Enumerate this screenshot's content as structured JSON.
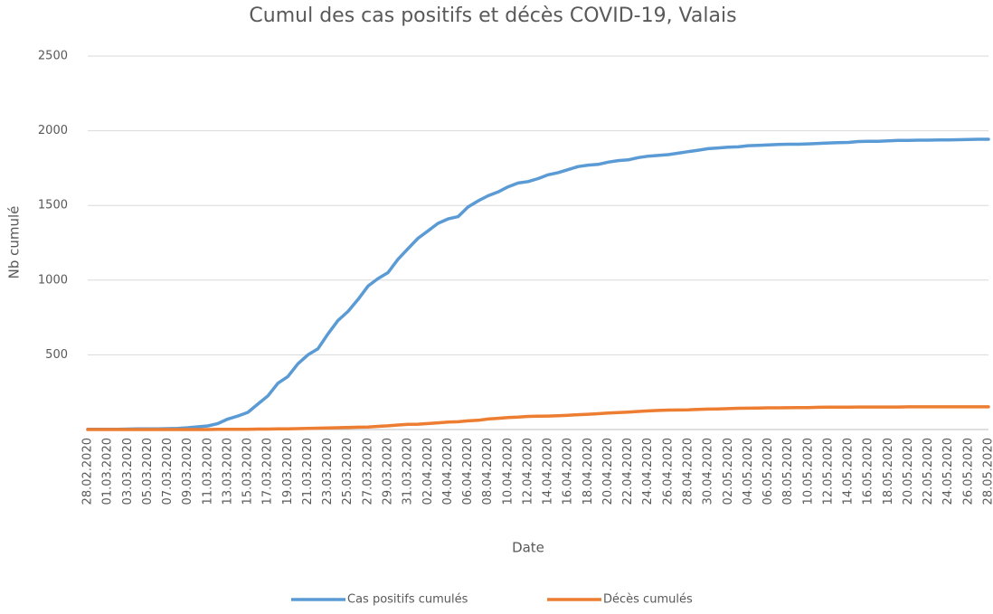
{
  "chart_data": {
    "type": "line",
    "title": "Cumul des cas positifs et décès COVID-19, Valais",
    "x_label": "Date",
    "y_label": "Nb cumulé",
    "categories": [
      "28.02.2020",
      null,
      "01.03.2020",
      null,
      "03.03.2020",
      null,
      "05.03.2020",
      null,
      "07.03.2020",
      null,
      "09.03.2020",
      null,
      "11.03.2020",
      null,
      "13.03.2020",
      null,
      "15.03.2020",
      null,
      "17.03.2020",
      null,
      "19.03.2020",
      null,
      "21.03.2020",
      null,
      "23.03.2020",
      null,
      "25.03.2020",
      null,
      "27.03.2020",
      null,
      "29.03.2020",
      null,
      "31.03.2020",
      null,
      "02.04.2020",
      null,
      "04.04.2020",
      null,
      "06.04.2020",
      null,
      "08.04.2020",
      null,
      "10.04.2020",
      null,
      "12.04.2020",
      null,
      "14.04.2020",
      null,
      "16.04.2020",
      null,
      "18.04.2020",
      null,
      "20.04.2020",
      null,
      "22.04.2020",
      null,
      "24.04.2020",
      null,
      "26.04.2020",
      null,
      "28.04.2020",
      null,
      "30.04.2020",
      null,
      "02.05.2020",
      null,
      "04.05.2020",
      null,
      "06.05.2020",
      null,
      "08.05.2020",
      null,
      "10.05.2020",
      null,
      "12.05.2020",
      null,
      "14.05.2020",
      null,
      "16.05.2020",
      null,
      "18.05.2020",
      null,
      "20.05.2020",
      null,
      "22.05.2020",
      null,
      "24.05.2020",
      null,
      "26.05.2020",
      null,
      "28.05.2020"
    ],
    "series": [
      {
        "name": "Cas positifs cumulés",
        "color": "#5b9bd5",
        "values": [
          1,
          1,
          2,
          2,
          3,
          4,
          4,
          5,
          6,
          8,
          12,
          18,
          24,
          40,
          70,
          90,
          115,
          170,
          225,
          310,
          355,
          440,
          500,
          540,
          640,
          730,
          790,
          870,
          960,
          1010,
          1050,
          1140,
          1210,
          1280,
          1330,
          1380,
          1410,
          1425,
          1490,
          1530,
          1565,
          1590,
          1625,
          1650,
          1660,
          1680,
          1705,
          1720,
          1740,
          1760,
          1770,
          1775,
          1790,
          1800,
          1805,
          1820,
          1830,
          1835,
          1840,
          1850,
          1860,
          1870,
          1880,
          1885,
          1890,
          1892,
          1900,
          1902,
          1905,
          1908,
          1910,
          1910,
          1912,
          1915,
          1918,
          1920,
          1922,
          1928,
          1930,
          1930,
          1932,
          1935,
          1936,
          1937,
          1937,
          1938,
          1939,
          1940,
          1942,
          1943,
          1943
        ]
      },
      {
        "name": "Décès cumulés",
        "color": "#ed7d31",
        "values": [
          0,
          0,
          0,
          0,
          0,
          0,
          0,
          0,
          0,
          0,
          0,
          0,
          0,
          1,
          1,
          2,
          2,
          3,
          3,
          4,
          5,
          6,
          8,
          9,
          10,
          12,
          14,
          16,
          17,
          21,
          25,
          30,
          35,
          36,
          40,
          45,
          50,
          52,
          58,
          62,
          70,
          75,
          80,
          83,
          88,
          89,
          90,
          92,
          95,
          99,
          102,
          106,
          110,
          114,
          117,
          121,
          125,
          128,
          130,
          131,
          132,
          135,
          137,
          138,
          140,
          142,
          143,
          144,
          145,
          145,
          146,
          147,
          147,
          149,
          150,
          150,
          150,
          151,
          151,
          151,
          151,
          151,
          152,
          152,
          152,
          152,
          152,
          152,
          152,
          152,
          152
        ]
      }
    ],
    "ylim": [
      0,
      2500
    ],
    "yticks": [
      500,
      1000,
      1500,
      2000,
      2500
    ],
    "grid": true,
    "legend": "bottom"
  }
}
